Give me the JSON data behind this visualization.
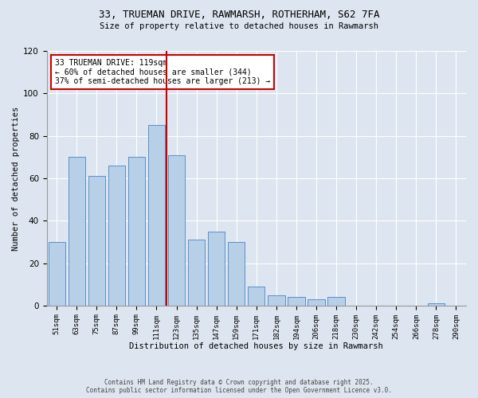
{
  "title1": "33, TRUEMAN DRIVE, RAWMARSH, ROTHERHAM, S62 7FA",
  "title2": "Size of property relative to detached houses in Rawmarsh",
  "xlabel": "Distribution of detached houses by size in Rawmarsh",
  "ylabel": "Number of detached properties",
  "bar_labels": [
    "51sqm",
    "63sqm",
    "75sqm",
    "87sqm",
    "99sqm",
    "111sqm",
    "123sqm",
    "135sqm",
    "147sqm",
    "159sqm",
    "171sqm",
    "182sqm",
    "194sqm",
    "206sqm",
    "218sqm",
    "230sqm",
    "242sqm",
    "254sqm",
    "266sqm",
    "278sqm",
    "290sqm"
  ],
  "bar_values": [
    30,
    70,
    61,
    66,
    70,
    85,
    71,
    31,
    35,
    30,
    9,
    5,
    4,
    3,
    4,
    0,
    0,
    0,
    0,
    1,
    0
  ],
  "bar_color": "#b8cfe8",
  "bar_edge_color": "#5b8fc9",
  "bg_color": "#dde6f0",
  "vline_x_idx": 6,
  "vline_color": "#cc0000",
  "annotation_line1": "33 TRUEMAN DRIVE: 119sqm",
  "annotation_line2": "← 60% of detached houses are smaller (344)",
  "annotation_line3": "37% of semi-detached houses are larger (213) →",
  "annotation_box_color": "#ffffff",
  "annotation_border_color": "#cc0000",
  "ylim": [
    0,
    120
  ],
  "yticks": [
    0,
    20,
    40,
    60,
    80,
    100,
    120
  ],
  "footer1": "Contains HM Land Registry data © Crown copyright and database right 2025.",
  "footer2": "Contains public sector information licensed under the Open Government Licence v3.0."
}
